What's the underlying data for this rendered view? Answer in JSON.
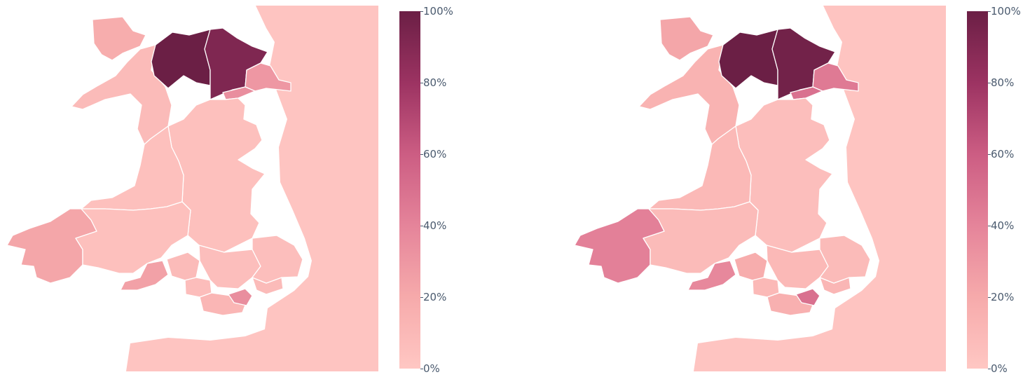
{
  "colorscale": {
    "stops": [
      "#ffc7c3",
      "#f6aaab",
      "#e5849a",
      "#cc5d83",
      "#9c3362",
      "#6b1f45"
    ],
    "ticks": [
      "0%",
      "20%",
      "40%",
      "60%",
      "80%",
      "100%"
    ]
  },
  "maps": [
    {
      "id": "left",
      "region_values": {
        "border_zone": 0.02,
        "anglesey": 0.18,
        "gwynedd": 0.08,
        "conwy": 1.0,
        "denbighshire": 0.92,
        "flintshire": 0.3,
        "wrexham": 0.35,
        "powys": 0.05,
        "ceredigion": 0.05,
        "pembrokeshire": 0.22,
        "carmarthenshire": 0.05,
        "swansea": 0.25,
        "neath_port_talbot": 0.08,
        "bridgend": 0.07,
        "valleys": 0.06,
        "vale_of_glamorgan": 0.12,
        "cardiff": 0.35,
        "newport": 0.08,
        "monmouthshire": 0.06
      }
    },
    {
      "id": "right",
      "region_values": {
        "border_zone": 0.02,
        "anglesey": 0.22,
        "gwynedd": 0.14,
        "conwy": 1.0,
        "denbighshire": 0.97,
        "flintshire": 0.45,
        "wrexham": 0.5,
        "powys": 0.06,
        "ceredigion": 0.1,
        "pembrokeshire": 0.42,
        "carmarthenshire": 0.08,
        "swansea": 0.38,
        "neath_port_talbot": 0.18,
        "bridgend": 0.1,
        "valleys": 0.1,
        "vale_of_glamorgan": 0.16,
        "cardiff": 0.5,
        "newport": 0.12,
        "monmouthshire": 0.08
      }
    }
  ]
}
